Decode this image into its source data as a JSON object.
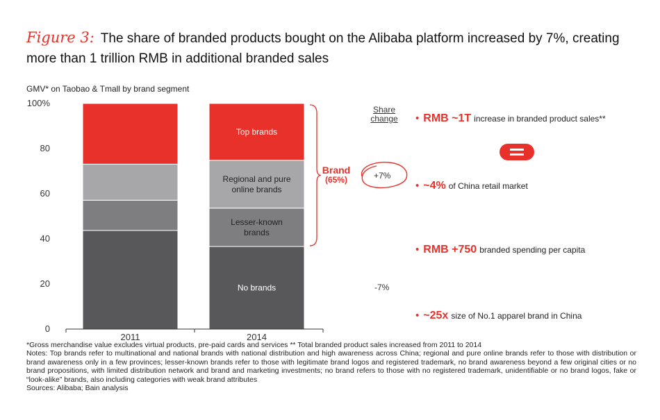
{
  "title": {
    "figure_label": "Figure 3:",
    "text": "The share of branded products bought on the Alibaba platform increased by 7%, creating more than 1 trillion RMB in additional branded sales"
  },
  "chart_data": {
    "type": "bar",
    "stacked": true,
    "title": "GMV* on Taobao & Tmall by brand segment",
    "categories": [
      "2011",
      "2014"
    ],
    "ylim": [
      0,
      100
    ],
    "yticks": [
      "0",
      "20",
      "40",
      "60",
      "80",
      "100%"
    ],
    "series": [
      {
        "name": "No brands",
        "values": [
          43.7,
          36.6
        ],
        "color": "#58585a"
      },
      {
        "name": "Lesser-known brands",
        "values": [
          13.4,
          17.0
        ],
        "color": "#7e7e80"
      },
      {
        "name": "Regional and pure online brands",
        "values": [
          16.0,
          21.2
        ],
        "color": "#a7a7a9"
      },
      {
        "name": "Top brands",
        "values": [
          26.9,
          25.2
        ],
        "color": "#e8312a"
      }
    ],
    "segment_labels_2014": [
      "No brands",
      "Lesser-known brands",
      "Regional and pure online brands",
      "Top brands"
    ],
    "brace_label": {
      "line1": "Brand",
      "line2": "(65%)"
    },
    "share_change": {
      "header": "Share change",
      "brand": "+7%",
      "no_brand": "-7%"
    },
    "grid": false
  },
  "bullets": [
    {
      "value": "RMB ~1T",
      "text": "increase in branded product sales**"
    },
    {
      "value": "~4%",
      "text": "of China retail market"
    },
    {
      "value": "RMB +750",
      "text": "branded spending per capita"
    },
    {
      "value": "~25x",
      "text": "size of No.1 apparel brand in China"
    }
  ],
  "colors": {
    "accent": "#e8312a"
  },
  "notes": {
    "line1": "*Gross merchandise value excludes virtual products, pre-paid cards and services ** Total branded product sales increased from 2011 to 2014",
    "line2": "Notes: Top brands refer to multinational and national brands with national distribution and high awareness across China; regional and pure online brands refer to those with distribution or brand awareness only in a few provinces; lesser-known brands refer to those with legitimate brand logos and registered trademark, no brand awareness beyond a few original cities or no brand propositions, with limited distribution network and brand and marketing investments; no brand refers to those with no registered trademark, unidentifiable or no brand logos, fake or “look-alike” brands, also including categories with weak brand attributes",
    "sources": "Sources: Alibaba; Bain analysis"
  }
}
